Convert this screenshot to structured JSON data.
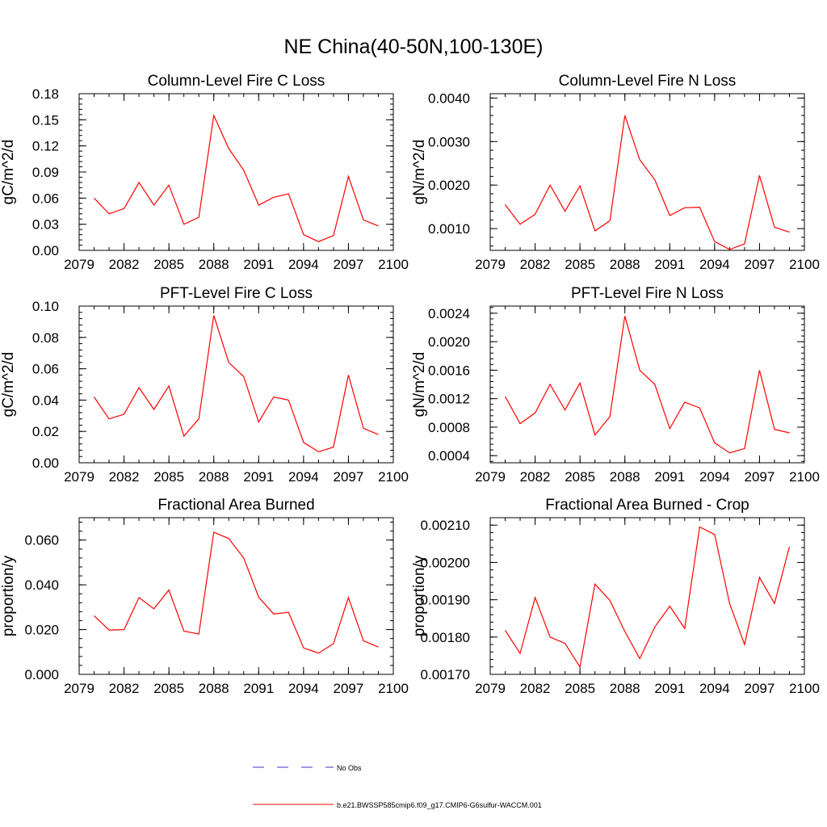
{
  "figure": {
    "title": "NE China(40-50N,100-130E)",
    "colors": {
      "model": "#ff0000",
      "obs": "#3b3bbf",
      "axis": "#000000"
    }
  },
  "legend": {
    "entries": [
      {
        "label": "No Obs",
        "style": "dashed",
        "color": "#3b3bbf"
      },
      {
        "label": "b.e21.BWSSP585cmip6.f09_g17.CMIP6-G6sulfur-WACCM.001",
        "style": "solid",
        "color": "#ff0000"
      }
    ]
  },
  "chart_data": [
    {
      "type": "line",
      "title": "Column-Level Fire C Loss",
      "ylabel": "gC/m^2/d",
      "xlim": [
        2079,
        2100
      ],
      "ylim": [
        0,
        0.18
      ],
      "xticks": [
        2079,
        2082,
        2085,
        2088,
        2091,
        2094,
        2097,
        2100
      ],
      "xtick_labels": [
        "2079",
        "2082",
        "2085",
        "2088",
        "2091",
        "2094",
        "2097",
        "2100"
      ],
      "yticks": [
        0,
        0.03,
        0.06,
        0.09,
        0.12,
        0.15,
        0.18
      ],
      "ytick_labels": [
        "0.00",
        "0.03",
        "0.06",
        "0.09",
        "0.12",
        "0.15",
        "0.18"
      ],
      "x": [
        2080,
        2081,
        2082,
        2083,
        2084,
        2085,
        2086,
        2087,
        2088,
        2089,
        2090,
        2091,
        2092,
        2093,
        2094,
        2095,
        2096,
        2097,
        2098,
        2099
      ],
      "series": [
        {
          "name": "b.e21.BWSSP585cmip6.f09_g17.CMIP6-G6sulfur-WACCM.001",
          "values": [
            0.06,
            0.042,
            0.048,
            0.078,
            0.052,
            0.075,
            0.03,
            0.038,
            0.155,
            0.117,
            0.092,
            0.052,
            0.061,
            0.065,
            0.018,
            0.01,
            0.017,
            0.085,
            0.035,
            0.028
          ]
        }
      ]
    },
    {
      "type": "line",
      "title": "Column-Level Fire N Loss",
      "ylabel": "gN/m^2/d",
      "xlim": [
        2079,
        2100
      ],
      "ylim": [
        0.0005,
        0.0041
      ],
      "xticks": [
        2079,
        2082,
        2085,
        2088,
        2091,
        2094,
        2097,
        2100
      ],
      "xtick_labels": [
        "2079",
        "2082",
        "2085",
        "2088",
        "2091",
        "2094",
        "2097",
        "2100"
      ],
      "yticks": [
        0.001,
        0.002,
        0.003,
        0.004
      ],
      "ytick_labels": [
        "0.0010",
        "0.0020",
        "0.0030",
        "0.0040"
      ],
      "x": [
        2080,
        2081,
        2082,
        2083,
        2084,
        2085,
        2086,
        2087,
        2088,
        2089,
        2090,
        2091,
        2092,
        2093,
        2094,
        2095,
        2096,
        2097,
        2098,
        2099
      ],
      "series": [
        {
          "name": "b.e21.BWSSP585cmip6.f09_g17.CMIP6-G6sulfur-WACCM.001",
          "values": [
            0.00155,
            0.0011,
            0.00133,
            0.002,
            0.0014,
            0.00198,
            0.00095,
            0.00118,
            0.0036,
            0.00258,
            0.00212,
            0.0013,
            0.00148,
            0.00149,
            0.0007,
            0.00052,
            0.00065,
            0.00222,
            0.00103,
            0.00092
          ]
        }
      ]
    },
    {
      "type": "line",
      "title": "PFT-Level Fire C Loss",
      "ylabel": "gC/m^2/d",
      "xlim": [
        2079,
        2100
      ],
      "ylim": [
        0,
        0.1
      ],
      "xticks": [
        2079,
        2082,
        2085,
        2088,
        2091,
        2094,
        2097,
        2100
      ],
      "xtick_labels": [
        "2079",
        "2082",
        "2085",
        "2088",
        "2091",
        "2094",
        "2097",
        "2100"
      ],
      "yticks": [
        0,
        0.02,
        0.04,
        0.06,
        0.08,
        0.1
      ],
      "ytick_labels": [
        "0.00",
        "0.02",
        "0.04",
        "0.06",
        "0.08",
        "0.10"
      ],
      "x": [
        2080,
        2081,
        2082,
        2083,
        2084,
        2085,
        2086,
        2087,
        2088,
        2089,
        2090,
        2091,
        2092,
        2093,
        2094,
        2095,
        2096,
        2097,
        2098,
        2099
      ],
      "series": [
        {
          "name": "b.e21.BWSSP585cmip6.f09_g17.CMIP6-G6sulfur-WACCM.001",
          "values": [
            0.042,
            0.028,
            0.031,
            0.048,
            0.034,
            0.049,
            0.017,
            0.028,
            0.094,
            0.064,
            0.055,
            0.026,
            0.042,
            0.04,
            0.013,
            0.007,
            0.01,
            0.056,
            0.022,
            0.018
          ]
        }
      ]
    },
    {
      "type": "line",
      "title": "PFT-Level Fire N Loss",
      "ylabel": "gN/m^2/d",
      "xlim": [
        2079,
        2100
      ],
      "ylim": [
        0.0003,
        0.0025
      ],
      "xticks": [
        2079,
        2082,
        2085,
        2088,
        2091,
        2094,
        2097,
        2100
      ],
      "xtick_labels": [
        "2079",
        "2082",
        "2085",
        "2088",
        "2091",
        "2094",
        "2097",
        "2100"
      ],
      "yticks": [
        0.0004,
        0.0008,
        0.0012,
        0.0016,
        0.002,
        0.0024
      ],
      "ytick_labels": [
        "0.0004",
        "0.0008",
        "0.0012",
        "0.0016",
        "0.0020",
        "0.0024"
      ],
      "x": [
        2080,
        2081,
        2082,
        2083,
        2084,
        2085,
        2086,
        2087,
        2088,
        2089,
        2090,
        2091,
        2092,
        2093,
        2094,
        2095,
        2096,
        2097,
        2098,
        2099
      ],
      "series": [
        {
          "name": "b.e21.BWSSP585cmip6.f09_g17.CMIP6-G6sulfur-WACCM.001",
          "values": [
            0.00123,
            0.00085,
            0.001,
            0.0014,
            0.00104,
            0.00142,
            0.00069,
            0.00095,
            0.00236,
            0.0016,
            0.0014,
            0.00078,
            0.00115,
            0.00107,
            0.00058,
            0.00044,
            0.0005,
            0.0016,
            0.00077,
            0.00072
          ]
        }
      ]
    },
    {
      "type": "line",
      "title": "Fractional Area Burned",
      "ylabel": "proportion/y",
      "xlim": [
        2079,
        2100
      ],
      "ylim": [
        0,
        0.07
      ],
      "xticks": [
        2079,
        2082,
        2085,
        2088,
        2091,
        2094,
        2097,
        2100
      ],
      "xtick_labels": [
        "2079",
        "2082",
        "2085",
        "2088",
        "2091",
        "2094",
        "2097",
        "2100"
      ],
      "yticks": [
        0,
        0.02,
        0.04,
        0.06
      ],
      "ytick_labels": [
        "0.000",
        "0.020",
        "0.040",
        "0.060"
      ],
      "x": [
        2080,
        2081,
        2082,
        2083,
        2084,
        2085,
        2086,
        2087,
        2088,
        2089,
        2090,
        2091,
        2092,
        2093,
        2094,
        2095,
        2096,
        2097,
        2098,
        2099
      ],
      "series": [
        {
          "name": "b.e21.BWSSP585cmip6.f09_g17.CMIP6-G6sulfur-WACCM.001",
          "values": [
            0.0262,
            0.0198,
            0.02,
            0.0343,
            0.0293,
            0.0377,
            0.0193,
            0.018,
            0.0635,
            0.0607,
            0.052,
            0.0345,
            0.027,
            0.0277,
            0.0118,
            0.0095,
            0.0137,
            0.0343,
            0.015,
            0.0122
          ]
        }
      ]
    },
    {
      "type": "line",
      "title": "Fractional Area Burned - Crop",
      "ylabel": "proportion/y",
      "xlim": [
        2079,
        2100
      ],
      "ylim": [
        0.0017,
        0.00212
      ],
      "xticks": [
        2079,
        2082,
        2085,
        2088,
        2091,
        2094,
        2097,
        2100
      ],
      "xtick_labels": [
        "2079",
        "2082",
        "2085",
        "2088",
        "2091",
        "2094",
        "2097",
        "2100"
      ],
      "yticks": [
        0.0017,
        0.0018,
        0.0019,
        0.002,
        0.0021
      ],
      "ytick_labels": [
        "0.00170",
        "0.00180",
        "0.00190",
        "0.00200",
        "0.00210"
      ],
      "x": [
        2080,
        2081,
        2082,
        2083,
        2084,
        2085,
        2086,
        2087,
        2088,
        2089,
        2090,
        2091,
        2092,
        2093,
        2094,
        2095,
        2096,
        2097,
        2098,
        2099
      ],
      "series": [
        {
          "name": "b.e21.BWSSP585cmip6.f09_g17.CMIP6-G6sulfur-WACCM.001",
          "values": [
            0.001818,
            0.001756,
            0.001906,
            0.0018,
            0.001783,
            0.00172,
            0.001942,
            0.001898,
            0.001815,
            0.001742,
            0.001827,
            0.001883,
            0.001823,
            0.002095,
            0.002075,
            0.00189,
            0.00178,
            0.00196,
            0.00189,
            0.002042
          ]
        }
      ]
    }
  ]
}
